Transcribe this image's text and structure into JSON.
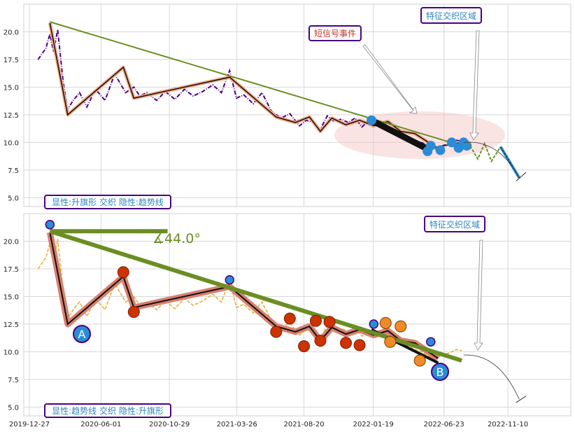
{
  "chart_data": [
    {
      "type": "line",
      "panel": "top",
      "ylim": [
        4.2,
        22.5
      ],
      "yticks": [
        "5.0",
        "7.5",
        "10.0",
        "12.5",
        "15.0",
        "17.5",
        "20.0"
      ],
      "grid": true,
      "series": [
        {
          "values_desc": "price",
          "color": "#4b0082",
          "style": "dash-dot",
          "x": [
            "2020-01-15",
            "2020-02-01",
            "2020-02-10",
            "2020-02-18",
            "2020-02-27",
            "2020-03-10",
            "2020-03-20",
            "2020-04-01",
            "2020-04-15",
            "2020-05-01",
            "2020-05-20",
            "2020-06-10",
            "2020-07-01",
            "2020-07-25",
            "2020-08-12",
            "2020-08-25",
            "2020-09-10",
            "2020-10-01",
            "2020-10-20",
            "2020-11-10",
            "2020-12-01",
            "2020-12-20",
            "2021-01-10",
            "2021-02-01",
            "2021-02-20",
            "2021-03-10",
            "2021-03-25",
            "2021-04-10",
            "2021-05-01",
            "2021-05-20",
            "2021-06-10",
            "2021-07-01",
            "2021-07-20",
            "2021-08-10",
            "2021-08-25",
            "2021-09-10",
            "2021-09-25",
            "2021-10-10",
            "2021-10-25",
            "2021-11-10",
            "2021-11-25",
            "2021-12-10",
            "2021-12-25",
            "2022-01-10",
            "2022-01-25",
            "2022-02-10",
            "2022-02-25",
            "2022-03-15",
            "2022-04-01",
            "2022-04-20",
            "2022-05-05",
            "2022-05-20",
            "2022-06-05",
            "2022-06-20",
            "2022-07-05",
            "2022-07-20",
            "2022-08-01"
          ],
          "values": [
            17.5,
            18.5,
            19.8,
            18.2,
            20.2,
            15.5,
            13.0,
            13.8,
            14.5,
            13.2,
            14.8,
            13.8,
            16.2,
            14.5,
            15.0,
            14.2,
            14.5,
            13.8,
            14.6,
            13.9,
            14.8,
            14.2,
            14.6,
            15.2,
            14.5,
            16.5,
            14.0,
            14.3,
            13.5,
            14.5,
            12.8,
            12.2,
            12.6,
            11.5,
            12.0,
            11.8,
            11.2,
            12.4,
            11.9,
            12.1,
            11.8,
            12.2,
            11.4,
            12.0,
            11.6,
            11.8,
            11.3,
            10.8,
            10.6,
            10.2,
            10.0,
            9.6,
            9.4,
            9.7,
            9.9,
            10.2,
            10.1
          ]
        },
        {
          "values_desc": "pattern",
          "color": "#111111",
          "outline": "#f4a582",
          "x": [
            "2020-02-10",
            "2020-03-20",
            "2020-07-20",
            "2020-08-12",
            "2021-03-10",
            "2021-06-20",
            "2021-08-01",
            "2021-09-01",
            "2021-09-25",
            "2021-10-20",
            "2021-11-20",
            "2021-12-20",
            "2022-01-20",
            "2022-02-20",
            "2022-03-20",
            "2022-04-20",
            "2022-05-20",
            "2022-06-10"
          ],
          "values": [
            20.8,
            12.5,
            16.8,
            14.0,
            15.9,
            12.3,
            11.8,
            12.3,
            11.0,
            12.2,
            11.6,
            12.0,
            11.5,
            11.9,
            11.0,
            10.8,
            10.0,
            9.4
          ]
        },
        {
          "values_desc": "trend",
          "color": "#6b8e23",
          "x": [
            "2020-02-10",
            "2022-08-01"
          ],
          "values": [
            20.9,
            9.7
          ]
        }
      ],
      "markers": {
        "color": "#2b8cd6",
        "x": [
          "2022-01-15",
          "2022-05-18",
          "2022-05-25",
          "2022-06-15",
          "2022-07-10",
          "2022-07-25",
          "2022-08-05",
          "2022-08-12"
        ],
        "values": [
          12.0,
          9.2,
          9.7,
          9.3,
          10.0,
          9.5,
          10.0,
          9.7
        ]
      },
      "future_x": [
        "2022-08-15",
        "2022-09-05",
        "2022-09-20",
        "2022-10-05",
        "2022-10-25",
        "2022-11-15",
        "2022-12-05"
      ],
      "future_values": [
        10.0,
        8.5,
        9.9,
        8.3,
        9.6,
        7.8,
        6.8
      ],
      "annotations": [
        {
          "text": "短信号事件",
          "color": "#c0392b",
          "box_x": "2021-11-15",
          "box_y": 19.8
        },
        {
          "text": "特征交织区域",
          "color": "#2e86c1",
          "box_x": "2022-06-30",
          "box_y": 21.5
        }
      ],
      "label": "显性:升旗形 交织 隐性:趋势线"
    },
    {
      "type": "line",
      "panel": "bottom",
      "ylim": [
        4.2,
        22.5
      ],
      "yticks": [
        "5.0",
        "7.5",
        "10.0",
        "12.5",
        "15.0",
        "17.5",
        "20.0"
      ],
      "xticks": [
        "2019-12-27",
        "2020-06-01",
        "2020-10-29",
        "2021-03-26",
        "2021-08-20",
        "2022-01-19",
        "2022-06-23",
        "2022-11-10"
      ],
      "grid": true,
      "angle_label": "∡44.0°",
      "point_labels": {
        "A": {
          "x": "2020-03-15",
          "value": 11.6
        },
        "B": {
          "x": "2022-07-05",
          "value": 8.3
        }
      },
      "annotations": [
        {
          "text": "特征交织区域",
          "color": "#2e86c1",
          "box_x": "2022-07-20",
          "box_y": 21.2
        }
      ],
      "label": "显性:趋势线 交织 隐性:升旗形"
    }
  ],
  "colors": {
    "frame": "#d0d0d0",
    "grid": "#d8d8d8",
    "green": "#6b8e23",
    "pink": "#f4c2c2",
    "blue": "#2b8cd6",
    "red_marker": "#cc3300",
    "orange_marker": "#f08a24",
    "label_border": "#4b0082"
  }
}
